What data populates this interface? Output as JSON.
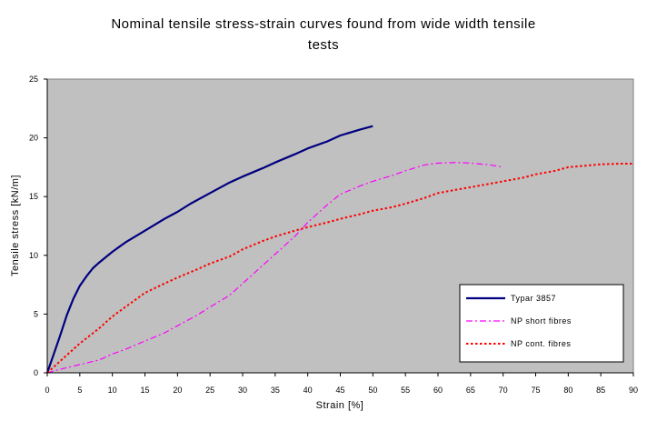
{
  "chart_data": {
    "type": "line",
    "title_lines": [
      "Nominal tensile stress-strain curves found from wide width tensile",
      "tests"
    ],
    "xlabel": "Strain [%]",
    "ylabel": "Tensile stress [kN/m]",
    "xlim": [
      0,
      90
    ],
    "ylim": [
      0,
      25
    ],
    "xticks": [
      0,
      5,
      10,
      15,
      20,
      25,
      30,
      35,
      40,
      45,
      50,
      55,
      60,
      65,
      70,
      75,
      80,
      85,
      90
    ],
    "yticks": [
      0,
      5,
      10,
      15,
      20,
      25
    ],
    "grid": false,
    "plot_background": "#c0c0c0",
    "legend_position": "bottom-right",
    "series": [
      {
        "name": "Typar 3857",
        "color": "#000080",
        "style": "solid",
        "points": [
          [
            0,
            0
          ],
          [
            1,
            1.6
          ],
          [
            2,
            3.2
          ],
          [
            3,
            4.9
          ],
          [
            4,
            6.3
          ],
          [
            5,
            7.4
          ],
          [
            6,
            8.2
          ],
          [
            7,
            8.9
          ],
          [
            8,
            9.4
          ],
          [
            10,
            10.3
          ],
          [
            12,
            11.1
          ],
          [
            15,
            12.1
          ],
          [
            18,
            13.1
          ],
          [
            20,
            13.7
          ],
          [
            22,
            14.4
          ],
          [
            25,
            15.3
          ],
          [
            28,
            16.2
          ],
          [
            30,
            16.7
          ],
          [
            33,
            17.4
          ],
          [
            35,
            17.9
          ],
          [
            38,
            18.6
          ],
          [
            40,
            19.1
          ],
          [
            43,
            19.7
          ],
          [
            45,
            20.2
          ],
          [
            48,
            20.7
          ],
          [
            50,
            21.0
          ]
        ]
      },
      {
        "name": "NP short fibres",
        "color": "#ff00ff",
        "style": "dashdot",
        "points": [
          [
            0,
            0
          ],
          [
            2,
            0.3
          ],
          [
            5,
            0.7
          ],
          [
            8,
            1.1
          ],
          [
            10,
            1.6
          ],
          [
            12,
            2.0
          ],
          [
            15,
            2.7
          ],
          [
            18,
            3.4
          ],
          [
            20,
            4.0
          ],
          [
            23,
            4.9
          ],
          [
            25,
            5.6
          ],
          [
            28,
            6.6
          ],
          [
            30,
            7.6
          ],
          [
            33,
            9.1
          ],
          [
            35,
            10.1
          ],
          [
            38,
            11.6
          ],
          [
            40,
            12.8
          ],
          [
            43,
            14.3
          ],
          [
            45,
            15.2
          ],
          [
            48,
            15.9
          ],
          [
            50,
            16.3
          ],
          [
            53,
            16.8
          ],
          [
            55,
            17.2
          ],
          [
            58,
            17.7
          ],
          [
            60,
            17.85
          ],
          [
            63,
            17.9
          ],
          [
            65,
            17.85
          ],
          [
            68,
            17.7
          ],
          [
            70,
            17.5
          ]
        ]
      },
      {
        "name": "NP cont. fibres",
        "color": "#ff0000",
        "style": "dotted",
        "points": [
          [
            0,
            0
          ],
          [
            2,
            1.0
          ],
          [
            5,
            2.5
          ],
          [
            8,
            3.8
          ],
          [
            10,
            4.8
          ],
          [
            12,
            5.6
          ],
          [
            15,
            6.8
          ],
          [
            18,
            7.6
          ],
          [
            20,
            8.1
          ],
          [
            23,
            8.8
          ],
          [
            25,
            9.3
          ],
          [
            28,
            9.9
          ],
          [
            30,
            10.5
          ],
          [
            33,
            11.2
          ],
          [
            35,
            11.6
          ],
          [
            38,
            12.1
          ],
          [
            40,
            12.4
          ],
          [
            43,
            12.8
          ],
          [
            45,
            13.1
          ],
          [
            48,
            13.5
          ],
          [
            50,
            13.8
          ],
          [
            53,
            14.1
          ],
          [
            55,
            14.4
          ],
          [
            58,
            14.9
          ],
          [
            60,
            15.3
          ],
          [
            63,
            15.6
          ],
          [
            65,
            15.8
          ],
          [
            68,
            16.1
          ],
          [
            70,
            16.3
          ],
          [
            73,
            16.6
          ],
          [
            75,
            16.9
          ],
          [
            78,
            17.2
          ],
          [
            80,
            17.5
          ],
          [
            83,
            17.65
          ],
          [
            85,
            17.75
          ],
          [
            88,
            17.8
          ],
          [
            90,
            17.8
          ]
        ]
      }
    ]
  }
}
